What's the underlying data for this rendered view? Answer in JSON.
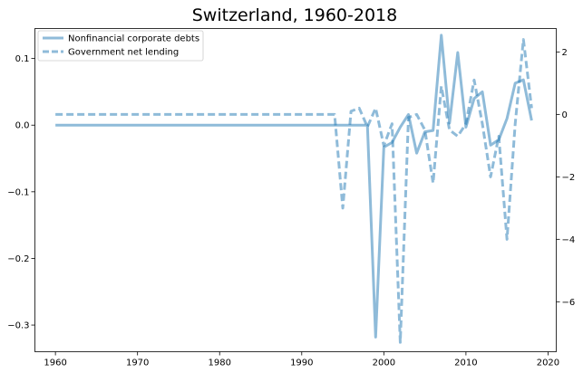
{
  "chart_data": {
    "type": "line",
    "title": "Switzerland, 1960-2018",
    "xlabel": "",
    "ylabel_left": "",
    "ylabel_right": "",
    "xlim": [
      1957.5,
      2021
    ],
    "ylim_left": [
      -0.34,
      0.145
    ],
    "ylim_right": [
      -7.6,
      2.75
    ],
    "xticks": [
      1960,
      1970,
      1980,
      1990,
      2000,
      2010,
      2020
    ],
    "yticks_left": [
      "0.1",
      "0.0",
      "−0.1",
      "−0.2",
      "−0.3"
    ],
    "yticks_left_values": [
      0.1,
      0.0,
      -0.1,
      -0.2,
      -0.3
    ],
    "yticks_right": [
      "2",
      "0",
      "−2",
      "−4",
      "−6"
    ],
    "yticks_right_values": [
      2,
      0,
      -2,
      -4,
      -6
    ],
    "grid": false,
    "legend": {
      "placement": "top-left"
    },
    "color": "#1f77b4",
    "series": [
      {
        "name": "Nonfinancial corporate debts",
        "axis": "left",
        "style": "solid",
        "x": [
          1960,
          1995,
          1996,
          1997,
          1998,
          1999,
          2000,
          2001,
          2002,
          2003,
          2004,
          2005,
          2006,
          2007,
          2008,
          2009,
          2010,
          2011,
          2012,
          2013,
          2014,
          2015,
          2016,
          2017,
          2018
        ],
        "y": [
          0.0,
          0.0,
          0.0,
          0.0,
          0.0,
          -0.318,
          -0.033,
          -0.026,
          -0.003,
          0.016,
          -0.042,
          -0.01,
          -0.008,
          0.135,
          0.003,
          0.109,
          -0.003,
          0.04,
          0.05,
          -0.03,
          -0.022,
          0.01,
          0.063,
          0.068,
          0.007
        ]
      },
      {
        "name": "Government net lending",
        "axis": "right",
        "style": "dashed",
        "x": [
          1960,
          1994,
          1995,
          1996,
          1997,
          1998,
          1999,
          2000,
          2001,
          2002,
          2003,
          2004,
          2005,
          2006,
          2007,
          2008,
          2009,
          2010,
          2011,
          2012,
          2013,
          2014,
          2015,
          2016,
          2017,
          2018
        ],
        "y": [
          0.0,
          0.0,
          -3.0,
          0.1,
          0.2,
          -0.4,
          0.2,
          -1.0,
          -0.3,
          -7.3,
          -0.1,
          0.0,
          -0.5,
          -2.2,
          0.9,
          -0.5,
          -0.7,
          -0.3,
          1.1,
          -0.3,
          -2.0,
          -0.7,
          -4.0,
          -0.3,
          2.4,
          0.2
        ]
      }
    ]
  }
}
